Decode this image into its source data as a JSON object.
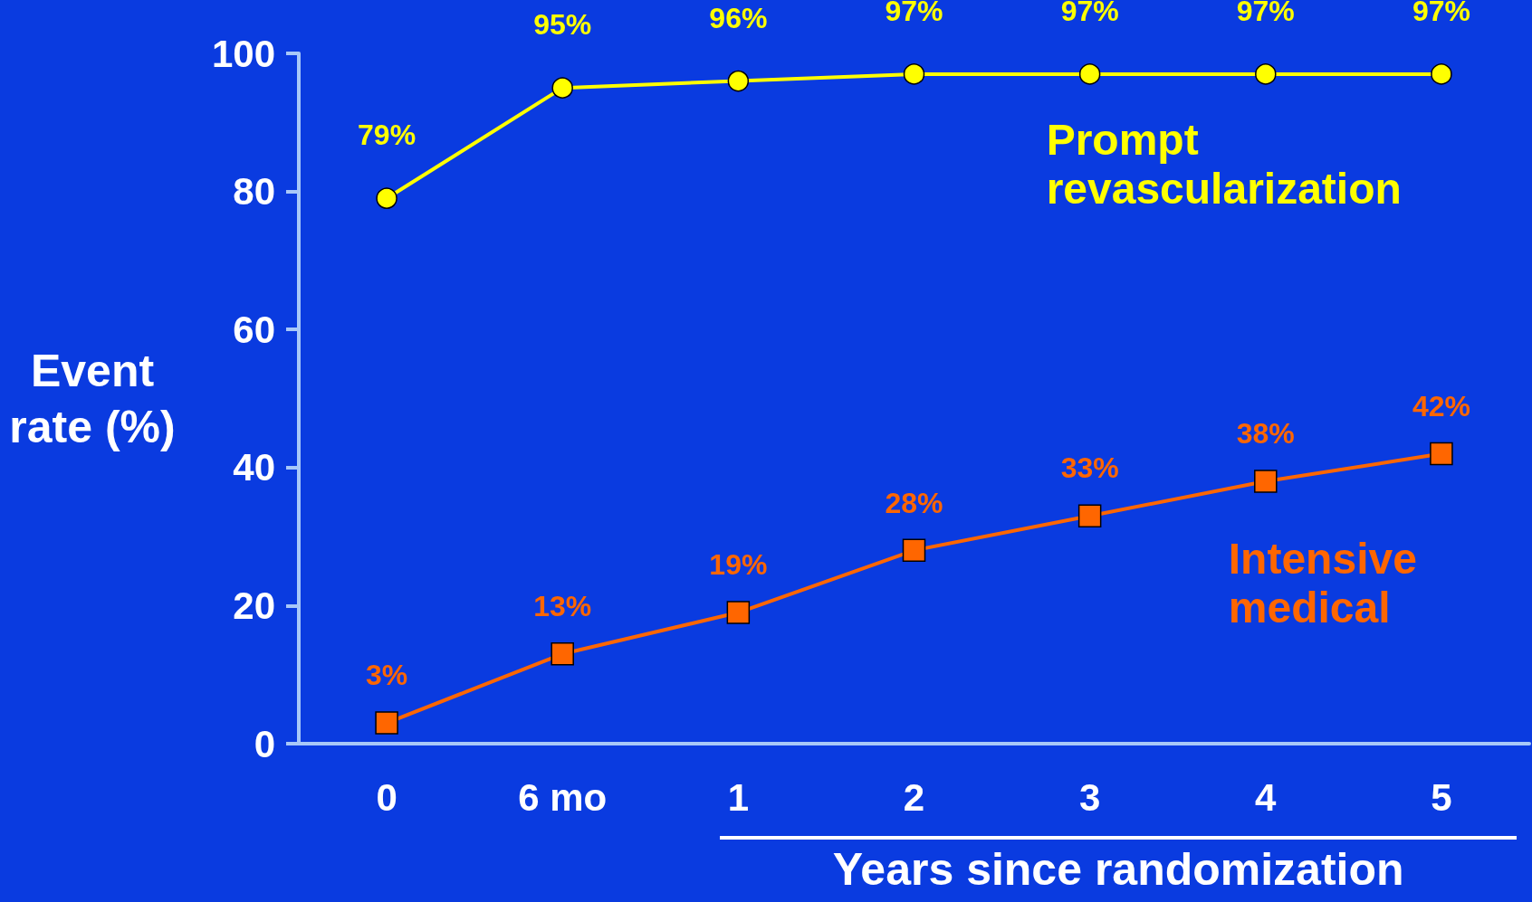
{
  "chart_data": {
    "type": "line",
    "xlabel": "Years since randomization",
    "ylabel": "Event\nrate (%)",
    "categories": [
      "0",
      "6 mo",
      "1",
      "2",
      "3",
      "4",
      "5"
    ],
    "ylim": [
      0,
      100
    ],
    "yticks": [
      0,
      20,
      40,
      60,
      80,
      100
    ],
    "grid": false,
    "legend": false,
    "series": [
      {
        "name": "Prompt\nrevascularization",
        "color": "#ffff00",
        "marker": "circle",
        "values": [
          79,
          95,
          96,
          97,
          97,
          97,
          97
        ],
        "value_labels": [
          "79%",
          "95%",
          "96%",
          "97%",
          "97%",
          "97%",
          "97%"
        ]
      },
      {
        "name": "Intensive\nmedical",
        "color": "#ff6600",
        "marker": "square",
        "values": [
          3,
          13,
          19,
          28,
          33,
          38,
          42
        ],
        "value_labels": [
          "3%",
          "13%",
          "19%",
          "28%",
          "33%",
          "38%",
          "42%"
        ]
      }
    ]
  }
}
